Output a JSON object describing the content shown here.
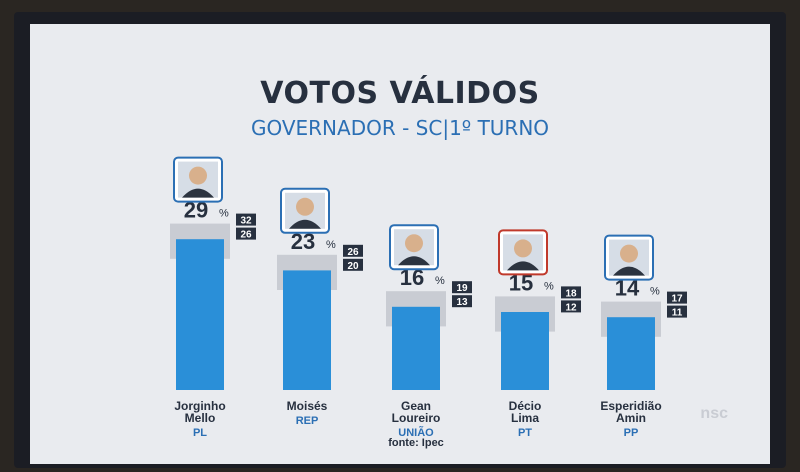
{
  "chart_data": {
    "type": "bar",
    "title": "VOTOS VÁLIDOS",
    "subtitle": "GOVERNADOR - SC|1º TURNO",
    "ylim": [
      0,
      35
    ],
    "candidates": [
      {
        "name": [
          "Jorginho",
          "Mello"
        ],
        "party": "PL",
        "value": 29,
        "high": 32,
        "low": 26,
        "frame": "#2b6fb4"
      },
      {
        "name": [
          "Moisés"
        ],
        "party": "REP",
        "value": 23,
        "high": 26,
        "low": 20,
        "frame": "#2b6fb4"
      },
      {
        "name": [
          "Gean",
          "Loureiro"
        ],
        "party": "UNIÃO",
        "value": 16,
        "high": 19,
        "low": 13,
        "frame": "#2b6fb4"
      },
      {
        "name": [
          "Décio",
          "Lima"
        ],
        "party": "PT",
        "value": 15,
        "high": 18,
        "low": 12,
        "frame": "#c0392b"
      },
      {
        "name": [
          "Esperidião",
          "Amin"
        ],
        "party": "PP",
        "value": 14,
        "high": 17,
        "low": 11,
        "frame": "#2b6fb4"
      }
    ],
    "source": "fonte: Ipec",
    "percent_sign": "%"
  },
  "logo": "nsc",
  "colors": {
    "bar": "#2a8fd8",
    "margin_band": "#c9ccd3",
    "title": "#27303f",
    "subtitle": "#2b6fb4",
    "party": "#2b6fb4",
    "badge": "#27303f"
  },
  "icons": [
    "candidate-photo-icon"
  ]
}
